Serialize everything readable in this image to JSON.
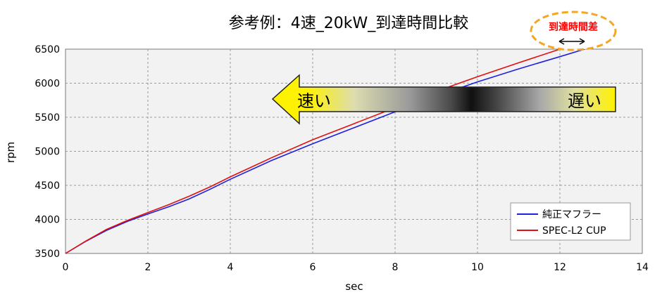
{
  "chart_data": {
    "type": "line",
    "title": "参考例：4速_20kW_到達時間比較",
    "xlabel": "sec",
    "ylabel": "rpm",
    "xlim": [
      0,
      14
    ],
    "ylim": [
      3500,
      6500
    ],
    "x_ticks": [
      0,
      2,
      4,
      6,
      8,
      10,
      12,
      14
    ],
    "y_ticks": [
      3500,
      4000,
      4500,
      5000,
      5500,
      6000,
      6500
    ],
    "x_tick_labels": [
      "0",
      "2",
      "4",
      "6",
      "8",
      "10",
      "12",
      "14"
    ],
    "y_tick_labels": [
      "3500",
      "4000",
      "4500",
      "5000",
      "5500",
      "6000",
      "6500"
    ],
    "grid": true,
    "legend_position": "bottom-right",
    "series": [
      {
        "name": "純正マフラー",
        "color": "#1f1fe0",
        "points": [
          [
            0,
            3500
          ],
          [
            0.5,
            3680
          ],
          [
            1,
            3840
          ],
          [
            1.5,
            3970
          ],
          [
            2,
            4080
          ],
          [
            2.5,
            4185
          ],
          [
            3,
            4300
          ],
          [
            3.5,
            4440
          ],
          [
            4,
            4590
          ],
          [
            5,
            4865
          ],
          [
            6,
            5110
          ],
          [
            7,
            5345
          ],
          [
            8,
            5580
          ],
          [
            9,
            5810
          ],
          [
            10,
            6020
          ],
          [
            11,
            6210
          ],
          [
            12,
            6390
          ],
          [
            12.6,
            6500
          ]
        ]
      },
      {
        "name": "SPEC-L2 CUP",
        "color": "#e01010",
        "points": [
          [
            0,
            3500
          ],
          [
            0.5,
            3685
          ],
          [
            1,
            3855
          ],
          [
            1.5,
            3985
          ],
          [
            2,
            4100
          ],
          [
            2.5,
            4215
          ],
          [
            3,
            4340
          ],
          [
            3.5,
            4475
          ],
          [
            4,
            4625
          ],
          [
            5,
            4905
          ],
          [
            6,
            5170
          ],
          [
            7,
            5405
          ],
          [
            8,
            5640
          ],
          [
            9,
            5880
          ],
          [
            10,
            6095
          ],
          [
            11,
            6300
          ],
          [
            12,
            6500
          ]
        ]
      }
    ],
    "annotations": {
      "faster_label": "速い",
      "slower_label": "遅い",
      "time_diff_label": "到達時間差"
    }
  },
  "colors": {
    "plot_background": "#f2f2f2",
    "grid": "#9a9a9a",
    "arrow_fill": "#fff200",
    "callout_border": "#f5a623",
    "callout_text": "#ff0000"
  }
}
